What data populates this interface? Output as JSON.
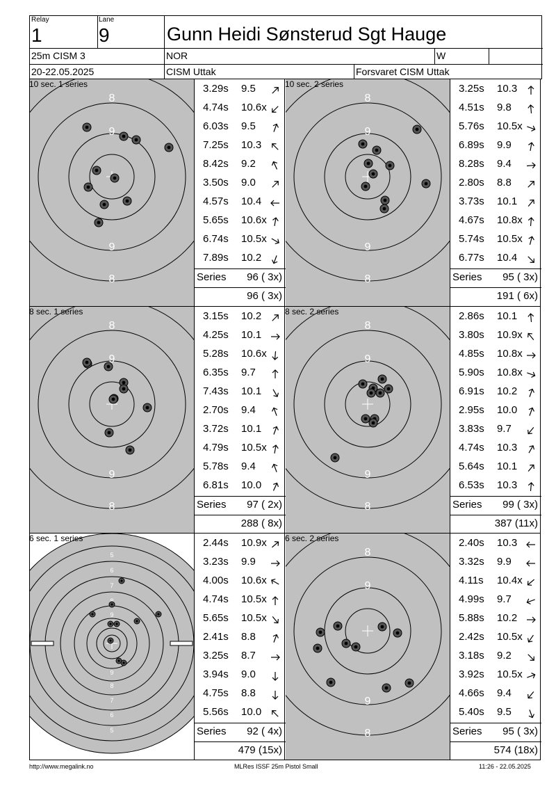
{
  "header": {
    "relay_label": "Relay",
    "relay_value": "1",
    "lane_label": "Lane",
    "lane_value": "9",
    "shooter_name": "Gunn Heidi Sønsterud Sgt Hauge",
    "event": "25m CISM 3",
    "nation": "NOR",
    "gender": "W",
    "date": "20-22.05.2025",
    "competition": "CISM Uttak",
    "club": "Forsvaret CISM Uttak"
  },
  "panels": [
    {
      "title": "10 sec. 1 series",
      "shots": [
        {
          "time": "3.29s",
          "score": "9.5",
          "dir": 45
        },
        {
          "time": "4.74s",
          "score": "10.6x",
          "dir": 225
        },
        {
          "time": "6.03s",
          "score": "9.5",
          "dir": 20
        },
        {
          "time": "7.25s",
          "score": "10.3",
          "dir": -45
        },
        {
          "time": "8.42s",
          "score": "9.2",
          "dir": -25
        },
        {
          "time": "3.50s",
          "score": "9.0",
          "dir": 45
        },
        {
          "time": "4.57s",
          "score": "10.4",
          "dir": -90
        },
        {
          "time": "5.65s",
          "score": "10.6x",
          "dir": 10
        },
        {
          "time": "6.74s",
          "score": "10.5x",
          "dir": 120
        },
        {
          "time": "7.89s",
          "score": "10.2",
          "dir": 200
        }
      ],
      "series_label": "Series",
      "series_total": "96 ( 3x)",
      "running_total": "96 ( 3x)"
    },
    {
      "title": "10 sec. 2 series",
      "shots": [
        {
          "time": "3.25s",
          "score": "10.3",
          "dir": 0
        },
        {
          "time": "4.51s",
          "score": "9.8",
          "dir": -5
        },
        {
          "time": "5.76s",
          "score": "10.5x",
          "dir": 110
        },
        {
          "time": "6.89s",
          "score": "9.9",
          "dir": 10
        },
        {
          "time": "8.28s",
          "score": "9.4",
          "dir": 85
        },
        {
          "time": "2.80s",
          "score": "8.8",
          "dir": 45
        },
        {
          "time": "3.73s",
          "score": "10.1",
          "dir": 40
        },
        {
          "time": "4.67s",
          "score": "10.8x",
          "dir": 5
        },
        {
          "time": "5.74s",
          "score": "10.5x",
          "dir": 15
        },
        {
          "time": "6.77s",
          "score": "10.4",
          "dir": 135
        }
      ],
      "series_label": "Series",
      "series_total": "95 ( 3x)",
      "running_total": "191 ( 6x)"
    },
    {
      "title": "8 sec. 1 series",
      "shots": [
        {
          "time": "3.15s",
          "score": "10.2",
          "dir": 45
        },
        {
          "time": "4.25s",
          "score": "10.1",
          "dir": 90
        },
        {
          "time": "5.28s",
          "score": "10.6x",
          "dir": 185
        },
        {
          "time": "6.35s",
          "score": "9.7",
          "dir": 0
        },
        {
          "time": "7.43s",
          "score": "10.1",
          "dir": 150
        },
        {
          "time": "2.70s",
          "score": "9.4",
          "dir": -20
        },
        {
          "time": "3.72s",
          "score": "10.1",
          "dir": 20
        },
        {
          "time": "4.79s",
          "score": "10.5x",
          "dir": 10
        },
        {
          "time": "5.78s",
          "score": "9.4",
          "dir": -20
        },
        {
          "time": "6.81s",
          "score": "10.0",
          "dir": 25
        }
      ],
      "series_label": "Series",
      "series_total": "97 ( 2x)",
      "running_total": "288 ( 8x)"
    },
    {
      "title": "8 sec. 2 series",
      "shots": [
        {
          "time": "2.86s",
          "score": "10.1",
          "dir": -5
        },
        {
          "time": "3.80s",
          "score": "10.9x",
          "dir": -40
        },
        {
          "time": "4.85s",
          "score": "10.8x",
          "dir": 90
        },
        {
          "time": "5.90s",
          "score": "10.8x",
          "dir": 110
        },
        {
          "time": "6.91s",
          "score": "10.2",
          "dir": 20
        },
        {
          "time": "2.95s",
          "score": "10.0",
          "dir": 20
        },
        {
          "time": "3.83s",
          "score": "9.7",
          "dir": 220
        },
        {
          "time": "4.74s",
          "score": "10.3",
          "dir": 30
        },
        {
          "time": "5.64s",
          "score": "10.1",
          "dir": 40
        },
        {
          "time": "6.53s",
          "score": "10.3",
          "dir": 5
        }
      ],
      "series_label": "Series",
      "series_total": "99 ( 3x)",
      "running_total": "387 (11x)"
    },
    {
      "title": "6 sec. 1 series",
      "shots": [
        {
          "time": "2.44s",
          "score": "10.9x",
          "dir": 50
        },
        {
          "time": "3.23s",
          "score": "9.9",
          "dir": 90
        },
        {
          "time": "4.00s",
          "score": "10.6x",
          "dir": -60
        },
        {
          "time": "4.74s",
          "score": "10.5x",
          "dir": 0
        },
        {
          "time": "5.65s",
          "score": "10.5x",
          "dir": 140
        },
        {
          "time": "2.41s",
          "score": "8.8",
          "dir": 20
        },
        {
          "time": "3.25s",
          "score": "8.7",
          "dir": 90
        },
        {
          "time": "3.94s",
          "score": "9.0",
          "dir": 180
        },
        {
          "time": "4.75s",
          "score": "8.8",
          "dir": 180
        },
        {
          "time": "5.56s",
          "score": "10.0",
          "dir": -45
        }
      ],
      "series_label": "Series",
      "series_total": "92 ( 4x)",
      "running_total": "479 (15x)"
    },
    {
      "title": "6 sec. 2 series",
      "shots": [
        {
          "time": "2.40s",
          "score": "10.3",
          "dir": -90
        },
        {
          "time": "3.32s",
          "score": "9.9",
          "dir": -90
        },
        {
          "time": "4.11s",
          "score": "10.4x",
          "dir": 230
        },
        {
          "time": "4.99s",
          "score": "9.7",
          "dir": -110
        },
        {
          "time": "5.88s",
          "score": "10.2",
          "dir": 90
        },
        {
          "time": "2.42s",
          "score": "10.5x",
          "dir": 215
        },
        {
          "time": "3.18s",
          "score": "9.2",
          "dir": 135
        },
        {
          "time": "3.92s",
          "score": "10.5x",
          "dir": 70
        },
        {
          "time": "4.66s",
          "score": "9.4",
          "dir": 220
        },
        {
          "time": "5.40s",
          "score": "9.5",
          "dir": 160
        }
      ],
      "series_label": "Series",
      "series_total": "95 ( 3x)",
      "running_total": "574 (18x)"
    }
  ],
  "rapid_ring_labels": [
    "8",
    "9",
    "9",
    "8"
  ],
  "precision_ring_labels": [
    "5",
    "6",
    "7",
    "8",
    "9",
    "9",
    "8",
    "7",
    "6",
    "5"
  ],
  "footer": {
    "website": "http://www.megalink.no",
    "software": "MLRes ISSF 25m Pistol Small",
    "timestamp": "11:26 - 22.05.2025"
  }
}
